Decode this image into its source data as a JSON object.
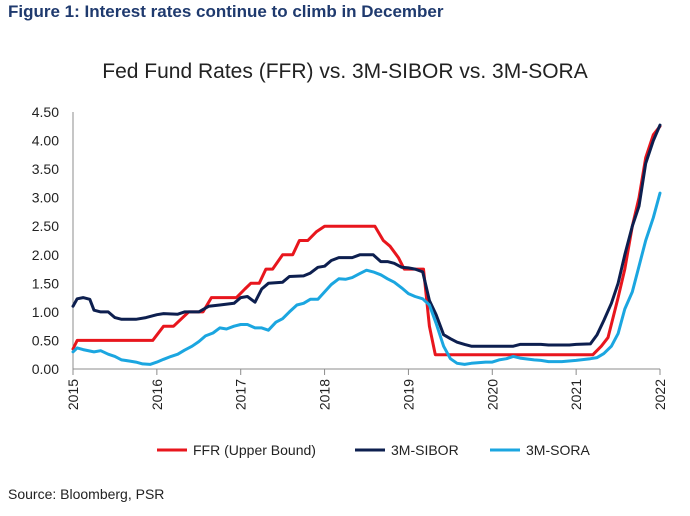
{
  "figure_heading": "Figure 1: Interest rates continue to climb in December",
  "source": "Source: Bloomberg, PSR",
  "chart_data": {
    "type": "line",
    "title": "Fed Fund Rates (FFR) vs. 3M-SIBOR vs. 3M-SORA",
    "xlabel": "",
    "ylabel": "",
    "xlim": [
      2015.0,
      2022.0
    ],
    "ylim": [
      0,
      4.5
    ],
    "x_ticks": [
      2015,
      2016,
      2017,
      2018,
      2019,
      2020,
      2021,
      2022
    ],
    "y_ticks": [
      "0.00",
      "0.50",
      "1.00",
      "1.50",
      "2.00",
      "2.50",
      "3.00",
      "3.50",
      "4.00",
      "4.50"
    ],
    "grid": false,
    "legend_position": "bottom",
    "series": [
      {
        "name": "FFR (Upper Bound)",
        "color": "#e8161d",
        "points": [
          [
            2015.0,
            0.35
          ],
          [
            2015.05,
            0.5
          ],
          [
            2015.95,
            0.5
          ],
          [
            2016.08,
            0.75
          ],
          [
            2016.2,
            0.75
          ],
          [
            2016.38,
            1.0
          ],
          [
            2016.55,
            1.0
          ],
          [
            2016.65,
            1.25
          ],
          [
            2016.95,
            1.25
          ],
          [
            2017.05,
            1.4
          ],
          [
            2017.12,
            1.5
          ],
          [
            2017.22,
            1.5
          ],
          [
            2017.3,
            1.75
          ],
          [
            2017.38,
            1.75
          ],
          [
            2017.5,
            2.0
          ],
          [
            2017.62,
            2.0
          ],
          [
            2017.7,
            2.25
          ],
          [
            2017.8,
            2.25
          ],
          [
            2017.9,
            2.4
          ],
          [
            2018.0,
            2.5
          ],
          [
            2018.6,
            2.5
          ],
          [
            2018.7,
            2.25
          ],
          [
            2018.78,
            2.15
          ],
          [
            2018.88,
            1.95
          ],
          [
            2018.95,
            1.75
          ],
          [
            2019.18,
            1.75
          ],
          [
            2019.25,
            0.75
          ],
          [
            2019.32,
            0.25
          ],
          [
            2021.2,
            0.25
          ],
          [
            2021.3,
            0.4
          ],
          [
            2021.38,
            0.55
          ],
          [
            2021.5,
            1.25
          ],
          [
            2021.58,
            1.75
          ],
          [
            2021.67,
            2.5
          ],
          [
            2021.75,
            3.0
          ],
          [
            2021.83,
            3.7
          ],
          [
            2021.92,
            4.1
          ],
          [
            2022.0,
            4.25
          ]
        ]
      },
      {
        "name": "3M-SIBOR",
        "color": "#0d1f4f",
        "points": [
          [
            2015.0,
            1.1
          ],
          [
            2015.05,
            1.23
          ],
          [
            2015.12,
            1.25
          ],
          [
            2015.2,
            1.22
          ],
          [
            2015.25,
            1.03
          ],
          [
            2015.33,
            1.0
          ],
          [
            2015.42,
            1.0
          ],
          [
            2015.5,
            0.9
          ],
          [
            2015.58,
            0.87
          ],
          [
            2015.75,
            0.87
          ],
          [
            2015.87,
            0.9
          ],
          [
            2016.0,
            0.95
          ],
          [
            2016.08,
            0.97
          ],
          [
            2016.25,
            0.96
          ],
          [
            2016.33,
            1.0
          ],
          [
            2016.5,
            1.0
          ],
          [
            2016.62,
            1.1
          ],
          [
            2016.75,
            1.12
          ],
          [
            2016.92,
            1.15
          ],
          [
            2017.0,
            1.25
          ],
          [
            2017.08,
            1.27
          ],
          [
            2017.17,
            1.17
          ],
          [
            2017.25,
            1.4
          ],
          [
            2017.33,
            1.5
          ],
          [
            2017.5,
            1.52
          ],
          [
            2017.58,
            1.62
          ],
          [
            2017.75,
            1.63
          ],
          [
            2017.83,
            1.68
          ],
          [
            2017.92,
            1.78
          ],
          [
            2018.0,
            1.8
          ],
          [
            2018.08,
            1.9
          ],
          [
            2018.17,
            1.95
          ],
          [
            2018.33,
            1.95
          ],
          [
            2018.42,
            2.0
          ],
          [
            2018.58,
            2.0
          ],
          [
            2018.67,
            1.88
          ],
          [
            2018.75,
            1.88
          ],
          [
            2018.83,
            1.85
          ],
          [
            2018.92,
            1.78
          ],
          [
            2019.0,
            1.77
          ],
          [
            2019.08,
            1.75
          ],
          [
            2019.17,
            1.7
          ],
          [
            2019.25,
            1.2
          ],
          [
            2019.33,
            0.95
          ],
          [
            2019.42,
            0.6
          ],
          [
            2019.5,
            0.53
          ],
          [
            2019.58,
            0.47
          ],
          [
            2019.67,
            0.43
          ],
          [
            2019.75,
            0.4
          ],
          [
            2020.25,
            0.4
          ],
          [
            2020.33,
            0.43
          ],
          [
            2020.58,
            0.43
          ],
          [
            2020.67,
            0.42
          ],
          [
            2020.92,
            0.42
          ],
          [
            2021.0,
            0.43
          ],
          [
            2021.17,
            0.44
          ],
          [
            2021.25,
            0.6
          ],
          [
            2021.33,
            0.85
          ],
          [
            2021.42,
            1.15
          ],
          [
            2021.5,
            1.5
          ],
          [
            2021.58,
            2.0
          ],
          [
            2021.67,
            2.5
          ],
          [
            2021.75,
            2.85
          ],
          [
            2021.83,
            3.6
          ],
          [
            2021.92,
            4.0
          ],
          [
            2022.0,
            4.27
          ]
        ]
      },
      {
        "name": "3M-SORA",
        "color": "#1ba6e0",
        "points": [
          [
            2015.0,
            0.3
          ],
          [
            2015.05,
            0.37
          ],
          [
            2015.12,
            0.34
          ],
          [
            2015.25,
            0.3
          ],
          [
            2015.33,
            0.32
          ],
          [
            2015.42,
            0.26
          ],
          [
            2015.5,
            0.22
          ],
          [
            2015.58,
            0.16
          ],
          [
            2015.67,
            0.14
          ],
          [
            2015.75,
            0.12
          ],
          [
            2015.83,
            0.09
          ],
          [
            2015.92,
            0.08
          ],
          [
            2016.0,
            0.12
          ],
          [
            2016.08,
            0.17
          ],
          [
            2016.17,
            0.22
          ],
          [
            2016.25,
            0.26
          ],
          [
            2016.33,
            0.33
          ],
          [
            2016.42,
            0.4
          ],
          [
            2016.5,
            0.48
          ],
          [
            2016.58,
            0.58
          ],
          [
            2016.67,
            0.63
          ],
          [
            2016.75,
            0.72
          ],
          [
            2016.83,
            0.7
          ],
          [
            2016.92,
            0.75
          ],
          [
            2017.0,
            0.78
          ],
          [
            2017.08,
            0.78
          ],
          [
            2017.17,
            0.72
          ],
          [
            2017.25,
            0.72
          ],
          [
            2017.33,
            0.68
          ],
          [
            2017.42,
            0.82
          ],
          [
            2017.5,
            0.88
          ],
          [
            2017.58,
            1.0
          ],
          [
            2017.67,
            1.12
          ],
          [
            2017.75,
            1.15
          ],
          [
            2017.83,
            1.22
          ],
          [
            2017.92,
            1.22
          ],
          [
            2018.0,
            1.35
          ],
          [
            2018.08,
            1.48
          ],
          [
            2018.17,
            1.58
          ],
          [
            2018.25,
            1.57
          ],
          [
            2018.33,
            1.6
          ],
          [
            2018.42,
            1.67
          ],
          [
            2018.5,
            1.73
          ],
          [
            2018.58,
            1.7
          ],
          [
            2018.67,
            1.65
          ],
          [
            2018.75,
            1.58
          ],
          [
            2018.83,
            1.52
          ],
          [
            2018.92,
            1.42
          ],
          [
            2019.0,
            1.32
          ],
          [
            2019.08,
            1.27
          ],
          [
            2019.17,
            1.23
          ],
          [
            2019.25,
            1.12
          ],
          [
            2019.33,
            0.8
          ],
          [
            2019.42,
            0.4
          ],
          [
            2019.5,
            0.18
          ],
          [
            2019.58,
            0.1
          ],
          [
            2019.67,
            0.08
          ],
          [
            2019.75,
            0.1
          ],
          [
            2019.92,
            0.12
          ],
          [
            2020.0,
            0.12
          ],
          [
            2020.08,
            0.16
          ],
          [
            2020.17,
            0.18
          ],
          [
            2020.25,
            0.22
          ],
          [
            2020.33,
            0.19
          ],
          [
            2020.5,
            0.16
          ],
          [
            2020.58,
            0.15
          ],
          [
            2020.67,
            0.13
          ],
          [
            2020.83,
            0.13
          ],
          [
            2021.0,
            0.15
          ],
          [
            2021.17,
            0.18
          ],
          [
            2021.25,
            0.2
          ],
          [
            2021.33,
            0.27
          ],
          [
            2021.42,
            0.4
          ],
          [
            2021.5,
            0.62
          ],
          [
            2021.58,
            1.05
          ],
          [
            2021.67,
            1.35
          ],
          [
            2021.75,
            1.8
          ],
          [
            2021.83,
            2.25
          ],
          [
            2021.92,
            2.65
          ],
          [
            2022.0,
            3.08
          ]
        ]
      }
    ]
  }
}
